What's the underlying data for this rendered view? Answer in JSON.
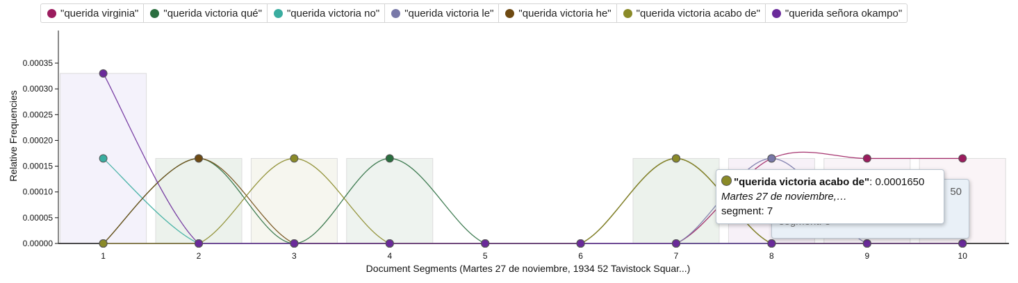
{
  "chart_data": {
    "type": "line",
    "xlabel": "Document Segments (Martes 27 de noviembre, 1934 52 Tavistock Squar...)",
    "ylabel": "Relative Frequencies",
    "x": [
      1,
      2,
      3,
      4,
      5,
      6,
      7,
      8,
      9,
      10
    ],
    "ylim": [
      0,
      0.00035
    ],
    "yticks": [
      "0.00000",
      "0.00005",
      "0.00010",
      "0.00015",
      "0.00020",
      "0.00025",
      "0.00030",
      "0.00035"
    ],
    "series": [
      {
        "name": "\"querida virginia\"",
        "color": "#9b1c5e",
        "values": [
          0,
          0,
          0,
          0,
          0,
          0,
          0,
          0.000165,
          0.000165,
          0.000165
        ]
      },
      {
        "name": "\"querida victoria qué\"",
        "color": "#2a6e3f",
        "values": [
          0,
          0.000165,
          0,
          0.000165,
          0,
          0,
          0.000165,
          0,
          0,
          0
        ]
      },
      {
        "name": "\"querida victoria no\"",
        "color": "#3aada0",
        "values": [
          0.000165,
          0,
          0,
          0,
          0,
          0,
          0,
          0,
          0,
          0
        ]
      },
      {
        "name": "\"querida victoria le\"",
        "color": "#7878a8",
        "values": [
          0,
          0,
          0,
          0,
          0,
          0,
          0,
          0.000165,
          0,
          0
        ]
      },
      {
        "name": "\"querida victoria he\"",
        "color": "#6e4a12",
        "values": [
          0,
          0.000165,
          0,
          0,
          0,
          0,
          0.000165,
          0,
          0,
          0
        ]
      },
      {
        "name": "\"querida victoria acabo de\"",
        "color": "#8a8a28",
        "values": [
          0,
          0,
          0.000165,
          0,
          0,
          0,
          0.000165,
          0,
          0,
          0
        ]
      },
      {
        "name": "\"querida señora okampo\"",
        "color": "#6a2a9a",
        "values": [
          0.00033,
          0,
          0,
          0,
          0,
          0,
          0,
          0,
          0,
          0
        ]
      }
    ],
    "bars": [
      0.00033,
      0.000165,
      0.000165,
      0.000165,
      0,
      0,
      0.000165,
      0.000165,
      0.000165,
      0.000165
    ],
    "bar_tints": [
      "#f4f2fb",
      "#ecf2ec",
      "#f6f6ef",
      "#eef3ef",
      "#ffffff",
      "#ffffff",
      "#ecf2ec",
      "#f7f1f8",
      "#f9f4f8",
      "#faf4f7"
    ],
    "grid": false,
    "legend": "top"
  },
  "tooltip_front": {
    "color": "#8a8a28",
    "name": "\"querida victoria acabo de\"",
    "value": ": 0.0001650",
    "segment_name": "Martes 27 de noviembre,…",
    "segment": "segment: 7"
  },
  "tooltip_back": {
    "value_tail": "50",
    "segment": "segment: 8"
  }
}
